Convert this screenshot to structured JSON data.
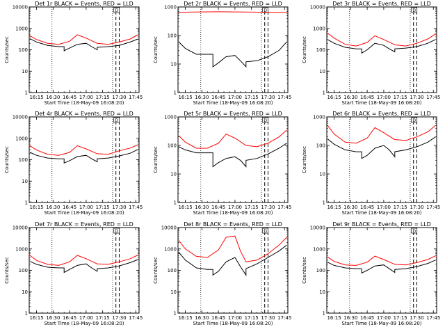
{
  "figure": {
    "axis_ylabel": "Counts/sec",
    "axis_xlabel": "Start Time (18-May-09 16:08:20)",
    "x_tick_labels": [
      "16:15",
      "16:30",
      "16:45",
      "17:00",
      "17:15",
      "17:30",
      "17:45"
    ],
    "y_tick_labels": [
      "1",
      "10",
      "100",
      "1000",
      "10000"
    ],
    "marker_label": "D",
    "colors": {
      "events": "#000000",
      "lld": "#ff0000",
      "frame": "#000000"
    }
  },
  "chart_data": [
    {
      "type": "line",
      "title": "Det 1r BLACK = Events, RED = LLD",
      "xlabel": "Start Time (18-May-09 16:08:20)",
      "ylabel": "Counts/sec",
      "y_scale": "log",
      "ylim": [
        1,
        10000
      ],
      "x_time_range": [
        "16:08:20",
        "17:48"
      ],
      "vlines_dotted": [
        "16:29",
        "17:24"
      ],
      "vlines_dashed": [
        "17:27",
        "17:30"
      ],
      "series": [
        {
          "name": "Events",
          "color": "#000000",
          "x": [
            "16:09",
            "16:15",
            "16:25",
            "16:35",
            "16:40",
            "16:40",
            "16:45",
            "16:52",
            "17:00",
            "17:05",
            "17:10",
            "17:10",
            "17:20",
            "17:30",
            "17:40",
            "17:47"
          ],
          "y": [
            330,
            230,
            160,
            140,
            140,
            90,
            120,
            180,
            200,
            140,
            100,
            130,
            140,
            160,
            230,
            320
          ]
        },
        {
          "name": "LLD",
          "color": "#ff0000",
          "x": [
            "16:09",
            "16:15",
            "16:25",
            "16:35",
            "16:45",
            "16:52",
            "17:00",
            "17:10",
            "17:20",
            "17:30",
            "17:40",
            "17:47"
          ],
          "y": [
            450,
            300,
            200,
            180,
            250,
            500,
            350,
            200,
            180,
            230,
            320,
            500
          ]
        }
      ]
    },
    {
      "type": "line",
      "title": "Det 2r BLACK = Events, RED = LLD",
      "xlabel": "Start Time (18-May-09 16:08:20)",
      "ylabel": "Counts/sec",
      "y_scale": "log",
      "ylim": [
        1,
        1000
      ],
      "x_time_range": [
        "16:08:20",
        "17:48"
      ],
      "vlines_dotted": [
        "16:29",
        "17:24"
      ],
      "vlines_dashed": [
        "17:27",
        "17:30"
      ],
      "series": [
        {
          "name": "Events",
          "color": "#000000",
          "x": [
            "16:09",
            "16:15",
            "16:25",
            "16:35",
            "16:40",
            "16:40",
            "16:45",
            "16:52",
            "17:00",
            "17:05",
            "17:10",
            "17:10",
            "17:20",
            "17:30",
            "17:40",
            "17:47"
          ],
          "y": [
            60,
            35,
            22,
            22,
            22,
            8,
            11,
            18,
            20,
            13,
            8,
            12,
            13,
            18,
            30,
            60
          ]
        },
        {
          "name": "LLD",
          "color": "#ff0000",
          "x": [
            "16:09",
            "16:20",
            "16:30",
            "16:45",
            "17:00",
            "17:15",
            "17:30",
            "17:47"
          ],
          "y": [
            650,
            660,
            670,
            680,
            670,
            660,
            650,
            640
          ]
        }
      ]
    },
    {
      "type": "line",
      "title": "Det 3r BLACK = Events, RED = LLD",
      "xlabel": "Start Time (18-May-09 16:08:20)",
      "ylabel": "Counts/sec",
      "y_scale": "log",
      "ylim": [
        1,
        10000
      ],
      "x_time_range": [
        "16:08:20",
        "17:48"
      ],
      "vlines_dotted": [
        "16:29",
        "17:24"
      ],
      "vlines_dashed": [
        "17:27",
        "17:30"
      ],
      "series": [
        {
          "name": "Events",
          "color": "#000000",
          "x": [
            "16:09",
            "16:15",
            "16:25",
            "16:35",
            "16:40",
            "16:40",
            "16:45",
            "16:52",
            "17:00",
            "17:05",
            "17:10",
            "17:10",
            "17:20",
            "17:30",
            "17:40",
            "17:47"
          ],
          "y": [
            300,
            200,
            130,
            110,
            110,
            70,
            100,
            200,
            160,
            110,
            80,
            110,
            120,
            140,
            200,
            300
          ]
        },
        {
          "name": "LLD",
          "color": "#ff0000",
          "x": [
            "16:09",
            "16:15",
            "16:25",
            "16:35",
            "16:45",
            "16:52",
            "17:00",
            "17:10",
            "17:20",
            "17:30",
            "17:40",
            "17:47"
          ],
          "y": [
            600,
            350,
            180,
            150,
            220,
            450,
            300,
            170,
            150,
            200,
            320,
            550
          ]
        }
      ]
    },
    {
      "type": "line",
      "title": "Det 4r BLACK = Events, RED = LLD",
      "xlabel": "Start Time (18-May-09 16:08:20)",
      "ylabel": "Counts/sec",
      "y_scale": "log",
      "ylim": [
        1,
        10000
      ],
      "x_time_range": [
        "16:08:20",
        "17:48"
      ],
      "vlines_dotted": [
        "16:29",
        "17:24"
      ],
      "vlines_dashed": [
        "17:27",
        "17:30"
      ],
      "series": [
        {
          "name": "Events",
          "color": "#000000",
          "x": [
            "16:09",
            "16:15",
            "16:25",
            "16:35",
            "16:40",
            "16:40",
            "16:45",
            "16:52",
            "17:00",
            "17:05",
            "17:10",
            "17:10",
            "17:20",
            "17:30",
            "17:40",
            "17:47"
          ],
          "y": [
            220,
            160,
            120,
            110,
            110,
            70,
            90,
            140,
            160,
            110,
            80,
            110,
            120,
            150,
            200,
            300
          ]
        },
        {
          "name": "LLD",
          "color": "#ff0000",
          "x": [
            "16:09",
            "16:15",
            "16:25",
            "16:35",
            "16:45",
            "16:52",
            "17:00",
            "17:10",
            "17:20",
            "17:30",
            "17:40",
            "17:47"
          ],
          "y": [
            450,
            280,
            180,
            160,
            220,
            450,
            320,
            190,
            180,
            260,
            350,
            500
          ]
        }
      ]
    },
    {
      "type": "line",
      "title": "Det 5r BLACK = Events, RED = LLD",
      "xlabel": "Start Time (18-May-09 16:08:20)",
      "ylabel": "Counts/sec",
      "y_scale": "log",
      "ylim": [
        1,
        1000
      ],
      "x_time_range": [
        "16:08:20",
        "17:48"
      ],
      "vlines_dotted": [
        "16:29",
        "17:24"
      ],
      "vlines_dashed": [
        "17:27",
        "17:30"
      ],
      "series": [
        {
          "name": "Events",
          "color": "#000000",
          "x": [
            "16:09",
            "16:15",
            "16:25",
            "16:35",
            "16:40",
            "16:40",
            "16:45",
            "16:52",
            "17:00",
            "17:05",
            "17:10",
            "17:10",
            "17:20",
            "17:30",
            "17:40",
            "17:47"
          ],
          "y": [
            90,
            70,
            55,
            55,
            55,
            18,
            25,
            35,
            40,
            30,
            18,
            30,
            35,
            50,
            80,
            120
          ]
        },
        {
          "name": "LLD",
          "color": "#ff0000",
          "x": [
            "16:09",
            "16:15",
            "16:25",
            "16:35",
            "16:45",
            "16:52",
            "17:00",
            "17:10",
            "17:20",
            "17:30",
            "17:40",
            "17:47"
          ],
          "y": [
            220,
            130,
            80,
            80,
            120,
            250,
            180,
            100,
            90,
            120,
            200,
            350
          ]
        }
      ]
    },
    {
      "type": "line",
      "title": "Det 6r BLACK = Events, RED = LLD",
      "xlabel": "Start Time (18-May-09 16:08:20)",
      "ylabel": "Counts/sec",
      "y_scale": "log",
      "ylim": [
        1,
        1000
      ],
      "x_time_range": [
        "16:08:20",
        "17:48"
      ],
      "vlines_dotted": [
        "16:29",
        "17:24"
      ],
      "vlines_dashed": [
        "17:27",
        "17:30"
      ],
      "series": [
        {
          "name": "Events",
          "color": "#000000",
          "x": [
            "16:09",
            "16:15",
            "16:25",
            "16:35",
            "16:40",
            "16:40",
            "16:45",
            "16:52",
            "17:00",
            "17:05",
            "17:10",
            "17:10",
            "17:20",
            "17:30",
            "17:40",
            "17:47"
          ],
          "y": [
            170,
            110,
            70,
            60,
            60,
            35,
            45,
            80,
            100,
            70,
            40,
            60,
            70,
            90,
            130,
            200
          ]
        },
        {
          "name": "LLD",
          "color": "#ff0000",
          "x": [
            "16:09",
            "16:15",
            "16:25",
            "16:35",
            "16:45",
            "16:52",
            "17:00",
            "17:10",
            "17:20",
            "17:30",
            "17:40",
            "17:47"
          ],
          "y": [
            500,
            250,
            130,
            120,
            180,
            420,
            280,
            160,
            150,
            200,
            300,
            500
          ]
        }
      ]
    },
    {
      "type": "line",
      "title": "Det 7r BLACK = Events, RED = LLD",
      "xlabel": "Start Time (18-May-09 16:08:20)",
      "ylabel": "Counts/sec",
      "y_scale": "log",
      "ylim": [
        1,
        10000
      ],
      "x_time_range": [
        "16:08:20",
        "17:48"
      ],
      "vlines_dotted": [
        "16:29",
        "17:24"
      ],
      "vlines_dashed": [
        "17:27",
        "17:30"
      ],
      "series": [
        {
          "name": "Events",
          "color": "#000000",
          "x": [
            "16:09",
            "16:15",
            "16:25",
            "16:35",
            "16:40",
            "16:40",
            "16:45",
            "16:52",
            "17:00",
            "17:05",
            "17:10",
            "17:10",
            "17:20",
            "17:30",
            "17:40",
            "17:47"
          ],
          "y": [
            260,
            190,
            140,
            130,
            130,
            80,
            110,
            170,
            200,
            130,
            90,
            120,
            130,
            160,
            230,
            320
          ]
        },
        {
          "name": "LLD",
          "color": "#ff0000",
          "x": [
            "16:09",
            "16:15",
            "16:25",
            "16:35",
            "16:45",
            "16:52",
            "17:00",
            "17:10",
            "17:20",
            "17:30",
            "17:40",
            "17:47"
          ],
          "y": [
            500,
            290,
            190,
            170,
            250,
            500,
            350,
            200,
            190,
            250,
            350,
            520
          ]
        }
      ]
    },
    {
      "type": "line",
      "title": "Det 8r BLACK = Events, RED = LLD",
      "xlabel": "Start Time (18-May-09 16:08:20)",
      "ylabel": "Counts/sec",
      "y_scale": "log",
      "ylim": [
        1,
        10000
      ],
      "x_time_range": [
        "16:08:20",
        "17:48"
      ],
      "vlines_dotted": [
        "16:29",
        "17:24"
      ],
      "vlines_dashed": [
        "17:27",
        "17:30"
      ],
      "series": [
        {
          "name": "Events",
          "color": "#000000",
          "x": [
            "16:09",
            "16:15",
            "16:25",
            "16:35",
            "16:40",
            "16:40",
            "16:45",
            "16:52",
            "17:00",
            "17:05",
            "17:10",
            "17:10",
            "17:20",
            "17:30",
            "17:40",
            "17:47"
          ],
          "y": [
            700,
            300,
            130,
            110,
            110,
            60,
            90,
            250,
            400,
            150,
            60,
            120,
            200,
            400,
            800,
            1500
          ]
        },
        {
          "name": "LLD",
          "color": "#ff0000",
          "x": [
            "16:09",
            "16:15",
            "16:25",
            "16:35",
            "16:45",
            "16:52",
            "17:00",
            "17:05",
            "17:10",
            "17:20",
            "17:30",
            "17:40",
            "17:47"
          ],
          "y": [
            2500,
            1000,
            450,
            400,
            900,
            3500,
            4000,
            800,
            250,
            300,
            600,
            1500,
            3500
          ]
        }
      ]
    },
    {
      "type": "line",
      "title": "Det 9r BLACK = Events, RED = LLD",
      "xlabel": "Start Time (18-May-09 16:08:20)",
      "ylabel": "Counts/sec",
      "y_scale": "log",
      "ylim": [
        1,
        10000
      ],
      "x_time_range": [
        "16:08:20",
        "17:48"
      ],
      "vlines_dotted": [
        "16:29",
        "17:24"
      ],
      "vlines_dashed": [
        "17:27",
        "17:30"
      ],
      "series": [
        {
          "name": "Events",
          "color": "#000000",
          "x": [
            "16:09",
            "16:15",
            "16:25",
            "16:35",
            "16:40",
            "16:40",
            "16:45",
            "16:52",
            "17:00",
            "17:05",
            "17:10",
            "17:10",
            "17:20",
            "17:30",
            "17:40",
            "17:47"
          ],
          "y": [
            240,
            170,
            130,
            120,
            120,
            75,
            100,
            160,
            180,
            120,
            80,
            110,
            120,
            150,
            210,
            300
          ]
        },
        {
          "name": "LLD",
          "color": "#ff0000",
          "x": [
            "16:09",
            "16:15",
            "16:25",
            "16:35",
            "16:45",
            "16:52",
            "17:00",
            "17:10",
            "17:20",
            "17:30",
            "17:40",
            "17:47"
          ],
          "y": [
            420,
            260,
            180,
            170,
            240,
            460,
            320,
            190,
            180,
            230,
            320,
            480
          ]
        }
      ]
    }
  ]
}
